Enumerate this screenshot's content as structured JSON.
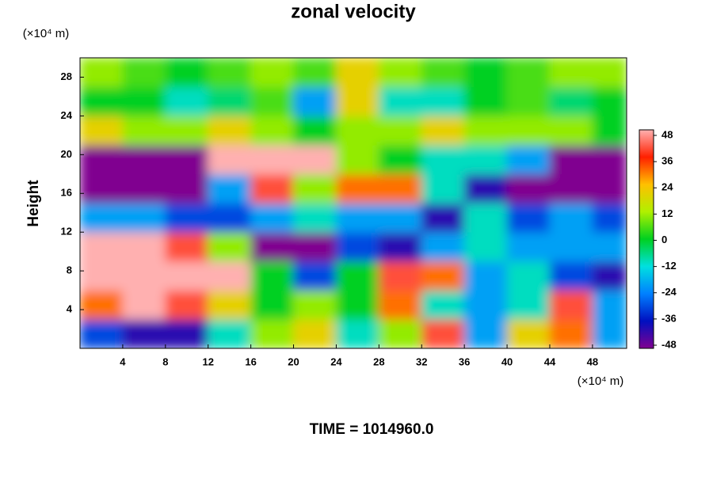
{
  "chart_data": {
    "type": "heatmap",
    "title": "zonal velocity",
    "y_label": "Height",
    "x_unit": "(×10⁴ m)",
    "y_unit": "(×10⁴ m)",
    "footer": "TIME = 1014960.0",
    "xlim": [
      0,
      51.2
    ],
    "ylim": [
      0,
      30
    ],
    "xticks": [
      4,
      8,
      12,
      16,
      20,
      24,
      28,
      32,
      36,
      40,
      44,
      48
    ],
    "yticks": [
      4,
      8,
      12,
      16,
      20,
      24,
      28
    ],
    "x_edges": [
      0,
      4,
      8,
      12,
      16,
      20,
      24,
      28,
      32,
      36,
      40,
      44,
      48,
      51.2
    ],
    "y_edges": [
      0,
      3,
      6,
      9,
      12,
      15,
      18,
      21,
      24,
      27,
      30
    ],
    "clim": [
      -48,
      48
    ],
    "colorbar_ticks": [
      48,
      36,
      24,
      12,
      0,
      -12,
      -24,
      -36,
      -48
    ],
    "colors": [
      "#800090",
      "#0010c0",
      "#0080ff",
      "#00e0e0",
      "#00d020",
      "#b0f000",
      "#ffc000",
      "#ff2000",
      "#ffb0b0"
    ],
    "z": [
      [
        -30,
        -40,
        -40,
        -10,
        10,
        20,
        -10,
        10,
        40,
        -20,
        20,
        30,
        -20
      ],
      [
        30,
        48,
        40,
        20,
        0,
        10,
        0,
        30,
        -10,
        -20,
        -10,
        40,
        -20
      ],
      [
        48,
        48,
        48,
        48,
        0,
        -30,
        0,
        40,
        30,
        -20,
        -10,
        -30,
        -40
      ],
      [
        48,
        48,
        40,
        10,
        -48,
        -48,
        -30,
        -40,
        -20,
        -10,
        -20,
        -20,
        -20
      ],
      [
        -20,
        -20,
        -30,
        -30,
        -20,
        -10,
        -20,
        -20,
        -40,
        -10,
        -30,
        -20,
        -30
      ],
      [
        -48,
        -48,
        -48,
        -20,
        40,
        10,
        30,
        30,
        -10,
        -40,
        -48,
        -48,
        -48
      ],
      [
        -48,
        -48,
        -48,
        48,
        48,
        48,
        10,
        0,
        -10,
        -10,
        -20,
        -48,
        -48
      ],
      [
        20,
        10,
        10,
        20,
        10,
        0,
        10,
        10,
        20,
        10,
        10,
        10,
        0
      ],
      [
        0,
        0,
        -10,
        -5,
        5,
        -20,
        20,
        -10,
        -10,
        0,
        5,
        -5,
        0
      ],
      [
        10,
        5,
        0,
        5,
        10,
        5,
        20,
        10,
        5,
        0,
        5,
        10,
        10
      ]
    ]
  }
}
